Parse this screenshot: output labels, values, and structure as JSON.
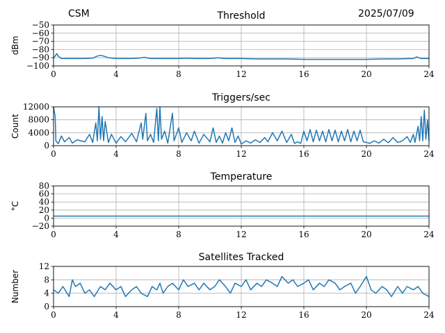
{
  "header": {
    "left": "CSM",
    "right": "2025/07/09"
  },
  "colors": {
    "series": "#1f77b4",
    "grid": "#b0b0b0",
    "axes": "#000000"
  },
  "chart_data": [
    {
      "type": "line",
      "title": "Threshold",
      "ylabel": "dBm",
      "xlabel": "",
      "xlim": [
        0,
        24
      ],
      "ylim": [
        -100,
        -50
      ],
      "xticks": [
        0,
        4,
        8,
        12,
        16,
        20,
        24
      ],
      "yticks": [
        -100,
        -90,
        -80,
        -70,
        -60,
        -50
      ],
      "grid": true,
      "series": [
        {
          "values": [
            [
              0,
              -90
            ],
            [
              0.1,
              -88
            ],
            [
              0.2,
              -85
            ],
            [
              0.3,
              -88
            ],
            [
              0.5,
              -91
            ],
            [
              1,
              -91
            ],
            [
              1.5,
              -91
            ],
            [
              2,
              -91
            ],
            [
              2.5,
              -90.5
            ],
            [
              2.8,
              -88
            ],
            [
              3,
              -87
            ],
            [
              3.2,
              -88
            ],
            [
              3.5,
              -90
            ],
            [
              4,
              -91
            ],
            [
              5,
              -91
            ],
            [
              5.5,
              -90.5
            ],
            [
              5.8,
              -89.5
            ],
            [
              6.2,
              -91
            ],
            [
              7,
              -91
            ],
            [
              7.5,
              -91
            ],
            [
              8,
              -91
            ],
            [
              8.5,
              -90.5
            ],
            [
              9,
              -91
            ],
            [
              10,
              -91
            ],
            [
              10.5,
              -90
            ],
            [
              11,
              -91
            ],
            [
              12,
              -91
            ],
            [
              13,
              -91.5
            ],
            [
              14,
              -91.5
            ],
            [
              15,
              -91.5
            ],
            [
              16,
              -92
            ],
            [
              17,
              -92
            ],
            [
              18,
              -92
            ],
            [
              19,
              -92
            ],
            [
              20,
              -92
            ],
            [
              21,
              -91.5
            ],
            [
              22,
              -91.5
            ],
            [
              23,
              -91
            ],
            [
              23.2,
              -89
            ],
            [
              23.5,
              -91
            ],
            [
              24,
              -91
            ]
          ]
        }
      ]
    },
    {
      "type": "line",
      "title": "Triggers/sec",
      "ylabel": "Count",
      "xlabel": "",
      "xlim": [
        0,
        24
      ],
      "ylim": [
        0,
        12000
      ],
      "xticks": [
        0,
        4,
        8,
        12,
        16,
        20,
        24
      ],
      "yticks": [
        0,
        4000,
        8000,
        12000
      ],
      "grid": true,
      "series": [
        {
          "values": [
            [
              0,
              12000
            ],
            [
              0.1,
              9000
            ],
            [
              0.15,
              1500
            ],
            [
              0.3,
              600
            ],
            [
              0.5,
              3000
            ],
            [
              0.7,
              1200
            ],
            [
              1,
              2500
            ],
            [
              1.2,
              800
            ],
            [
              1.5,
              1800
            ],
            [
              2,
              1200
            ],
            [
              2.3,
              3500
            ],
            [
              2.5,
              1000
            ],
            [
              2.7,
              7000
            ],
            [
              2.8,
              1500
            ],
            [
              2.9,
              12000
            ],
            [
              3,
              2000
            ],
            [
              3.1,
              9000
            ],
            [
              3.2,
              1500
            ],
            [
              3.3,
              7500
            ],
            [
              3.5,
              1000
            ],
            [
              3.7,
              3500
            ],
            [
              4,
              800
            ],
            [
              4.3,
              2800
            ],
            [
              4.6,
              1200
            ],
            [
              5,
              3800
            ],
            [
              5.3,
              1200
            ],
            [
              5.6,
              7000
            ],
            [
              5.7,
              2000
            ],
            [
              5.9,
              10000
            ],
            [
              6,
              1500
            ],
            [
              6.2,
              3500
            ],
            [
              6.4,
              1000
            ],
            [
              6.6,
              11500
            ],
            [
              6.7,
              1500
            ],
            [
              6.8,
              12000
            ],
            [
              6.9,
              2000
            ],
            [
              7.1,
              4500
            ],
            [
              7.3,
              800
            ],
            [
              7.6,
              10000
            ],
            [
              7.7,
              1500
            ],
            [
              8,
              5500
            ],
            [
              8.2,
              1000
            ],
            [
              8.5,
              4000
            ],
            [
              8.8,
              1500
            ],
            [
              9,
              4500
            ],
            [
              9.3,
              800
            ],
            [
              9.6,
              3500
            ],
            [
              10,
              1200
            ],
            [
              10.2,
              5500
            ],
            [
              10.4,
              1000
            ],
            [
              10.6,
              3000
            ],
            [
              10.8,
              800
            ],
            [
              11,
              4000
            ],
            [
              11.2,
              1500
            ],
            [
              11.4,
              5500
            ],
            [
              11.6,
              1000
            ],
            [
              11.8,
              3000
            ],
            [
              12,
              500
            ],
            [
              12.3,
              1500
            ],
            [
              12.6,
              800
            ],
            [
              12.9,
              1800
            ],
            [
              13.2,
              1000
            ],
            [
              13.5,
              2500
            ],
            [
              13.7,
              1200
            ],
            [
              14,
              4000
            ],
            [
              14.3,
              1500
            ],
            [
              14.6,
              4500
            ],
            [
              14.9,
              1000
            ],
            [
              15.2,
              3500
            ],
            [
              15.4,
              700
            ],
            [
              15.6,
              1200
            ],
            [
              15.8,
              700
            ],
            [
              16,
              4500
            ],
            [
              16.2,
              1500
            ],
            [
              16.4,
              5000
            ],
            [
              16.6,
              1200
            ],
            [
              16.8,
              4800
            ],
            [
              17,
              1500
            ],
            [
              17.2,
              4500
            ],
            [
              17.4,
              1200
            ],
            [
              17.6,
              5000
            ],
            [
              17.8,
              1500
            ],
            [
              18,
              4800
            ],
            [
              18.2,
              1200
            ],
            [
              18.4,
              4500
            ],
            [
              18.6,
              1500
            ],
            [
              18.8,
              5000
            ],
            [
              19,
              1200
            ],
            [
              19.2,
              4500
            ],
            [
              19.4,
              1500
            ],
            [
              19.6,
              4800
            ],
            [
              19.8,
              1200
            ],
            [
              20,
              1000
            ],
            [
              20.2,
              700
            ],
            [
              20.5,
              1500
            ],
            [
              20.8,
              800
            ],
            [
              21.1,
              2000
            ],
            [
              21.4,
              900
            ],
            [
              21.7,
              2500
            ],
            [
              22,
              1000
            ],
            [
              22.3,
              1500
            ],
            [
              22.6,
              2800
            ],
            [
              22.8,
              1000
            ],
            [
              23,
              3500
            ],
            [
              23.1,
              1000
            ],
            [
              23.3,
              6000
            ],
            [
              23.4,
              1500
            ],
            [
              23.5,
              9000
            ],
            [
              23.6,
              1500
            ],
            [
              23.7,
              11000
            ],
            [
              23.8,
              2000
            ],
            [
              23.9,
              8000
            ],
            [
              24,
              1500
            ]
          ]
        }
      ]
    },
    {
      "type": "line",
      "title": "Temperature",
      "ylabel": "°C",
      "xlabel": "",
      "xlim": [
        0,
        24
      ],
      "ylim": [
        -20,
        80
      ],
      "xticks": [
        0,
        4,
        8,
        12,
        16,
        20,
        24
      ],
      "yticks": [
        -20,
        0,
        20,
        40,
        60,
        80
      ],
      "grid": true,
      "series": [
        {
          "values": [
            [
              0,
              5
            ],
            [
              24,
              5
            ]
          ]
        }
      ]
    },
    {
      "type": "line",
      "title": "Satellites Tracked",
      "ylabel": "Number",
      "xlabel": "",
      "xlim": [
        0,
        24
      ],
      "ylim": [
        0,
        12
      ],
      "xticks": [
        0,
        4,
        8,
        12,
        16,
        20,
        24
      ],
      "yticks": [
        0,
        4,
        8,
        12
      ],
      "grid": true,
      "series": [
        {
          "values": [
            [
              0,
              5
            ],
            [
              0.3,
              4
            ],
            [
              0.6,
              6
            ],
            [
              1,
              3
            ],
            [
              1.2,
              8
            ],
            [
              1.4,
              6
            ],
            [
              1.7,
              7
            ],
            [
              2,
              4
            ],
            [
              2.3,
              5
            ],
            [
              2.6,
              3
            ],
            [
              3,
              6
            ],
            [
              3.3,
              5
            ],
            [
              3.6,
              7
            ],
            [
              4,
              5
            ],
            [
              4.3,
              6
            ],
            [
              4.6,
              3
            ],
            [
              5,
              5
            ],
            [
              5.3,
              6
            ],
            [
              5.6,
              4
            ],
            [
              6,
              3
            ],
            [
              6.3,
              6
            ],
            [
              6.6,
              5
            ],
            [
              6.8,
              7
            ],
            [
              7,
              4
            ],
            [
              7.3,
              6
            ],
            [
              7.6,
              7
            ],
            [
              8,
              5
            ],
            [
              8.3,
              8
            ],
            [
              8.6,
              6
            ],
            [
              9,
              7
            ],
            [
              9.3,
              5
            ],
            [
              9.6,
              7
            ],
            [
              10,
              5
            ],
            [
              10.3,
              6
            ],
            [
              10.6,
              8
            ],
            [
              11,
              6
            ],
            [
              11.3,
              4
            ],
            [
              11.6,
              7
            ],
            [
              12,
              6
            ],
            [
              12.3,
              8
            ],
            [
              12.6,
              5
            ],
            [
              13,
              7
            ],
            [
              13.3,
              6
            ],
            [
              13.6,
              8
            ],
            [
              14,
              7
            ],
            [
              14.3,
              6
            ],
            [
              14.6,
              9
            ],
            [
              15,
              7
            ],
            [
              15.3,
              8
            ],
            [
              15.6,
              6
            ],
            [
              16,
              7
            ],
            [
              16.3,
              8
            ],
            [
              16.6,
              5
            ],
            [
              17,
              7
            ],
            [
              17.3,
              6
            ],
            [
              17.6,
              8
            ],
            [
              18,
              7
            ],
            [
              18.3,
              5
            ],
            [
              18.6,
              6
            ],
            [
              19,
              7
            ],
            [
              19.3,
              4
            ],
            [
              19.6,
              6
            ],
            [
              20,
              9
            ],
            [
              20.3,
              5
            ],
            [
              20.6,
              4
            ],
            [
              21,
              6
            ],
            [
              21.3,
              5
            ],
            [
              21.6,
              3
            ],
            [
              22,
              6
            ],
            [
              22.3,
              4
            ],
            [
              22.6,
              6
            ],
            [
              23,
              5
            ],
            [
              23.3,
              6
            ],
            [
              23.6,
              4
            ],
            [
              24,
              3
            ]
          ]
        }
      ]
    }
  ]
}
